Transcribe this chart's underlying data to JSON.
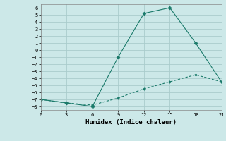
{
  "xlabel": "Humidex (Indice chaleur)",
  "background_color": "#cce8e8",
  "grid_color": "#aacccc",
  "line_color": "#1a7a6a",
  "xlim": [
    0,
    21
  ],
  "ylim": [
    -8.5,
    6.5
  ],
  "xticks": [
    0,
    3,
    6,
    9,
    12,
    15,
    18,
    21
  ],
  "yticks": [
    -8,
    -7,
    -6,
    -5,
    -4,
    -3,
    -2,
    -1,
    0,
    1,
    2,
    3,
    4,
    5,
    6
  ],
  "series1_x": [
    0,
    3,
    6,
    9,
    12,
    15,
    18,
    21
  ],
  "series1_y": [
    -7.0,
    -7.5,
    -8.0,
    -1.0,
    5.2,
    6.0,
    1.0,
    -4.5
  ],
  "series2_x": [
    0,
    3,
    6,
    9,
    12,
    15,
    18,
    21
  ],
  "series2_y": [
    -7.0,
    -7.5,
    -7.8,
    -6.8,
    -5.5,
    -4.5,
    -3.5,
    -4.5
  ]
}
